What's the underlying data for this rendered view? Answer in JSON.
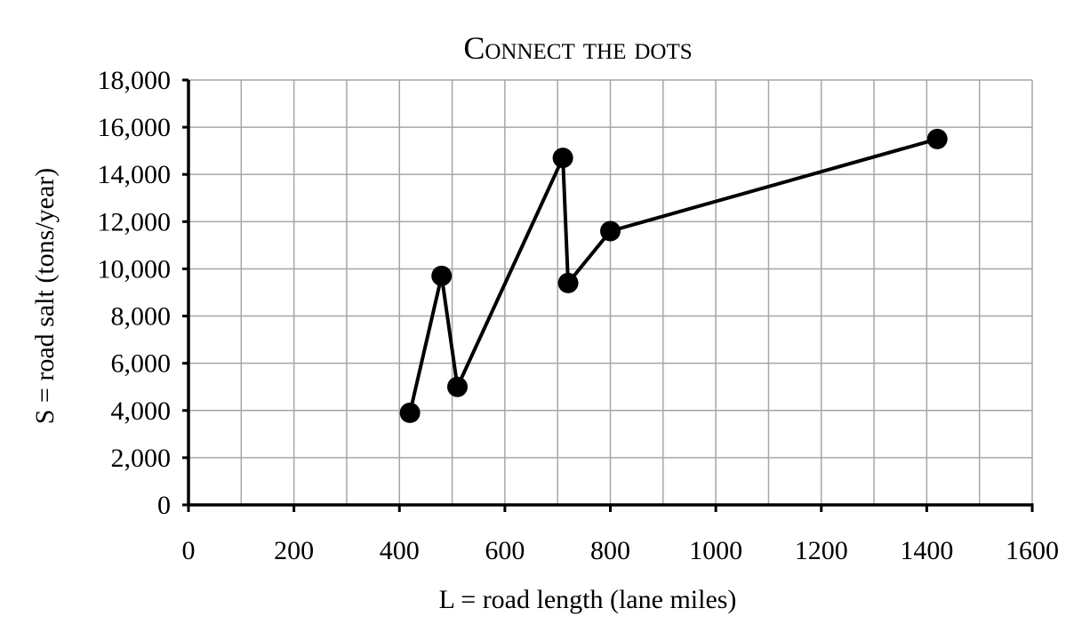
{
  "chart_data": {
    "type": "line",
    "title": "Connect the dots",
    "xlabel": "L = road length (lane miles)",
    "ylabel": "S = road salt (tons/year)",
    "xlim": [
      0,
      1600
    ],
    "ylim": [
      0,
      18000
    ],
    "x_ticks": [
      0,
      200,
      400,
      600,
      800,
      1000,
      1200,
      1400,
      1600
    ],
    "x_tick_labels": [
      "0",
      "200",
      "400",
      "600",
      "800",
      "1000",
      "1200",
      "1400",
      "1600"
    ],
    "y_ticks": [
      0,
      2000,
      4000,
      6000,
      8000,
      10000,
      12000,
      14000,
      16000,
      18000
    ],
    "y_tick_labels": [
      "0",
      "2,000",
      "4,000",
      "6,000",
      "8,000",
      "10,000",
      "12,000",
      "14,000",
      "16,000",
      "18,000"
    ],
    "x_minor_step": 100,
    "grid": true,
    "markers": true,
    "series": [
      {
        "x": [
          420,
          480,
          510,
          710,
          720,
          800,
          1420
        ],
        "y": [
          3900,
          9700,
          5000,
          14700,
          9400,
          11600,
          15500
        ]
      }
    ]
  }
}
